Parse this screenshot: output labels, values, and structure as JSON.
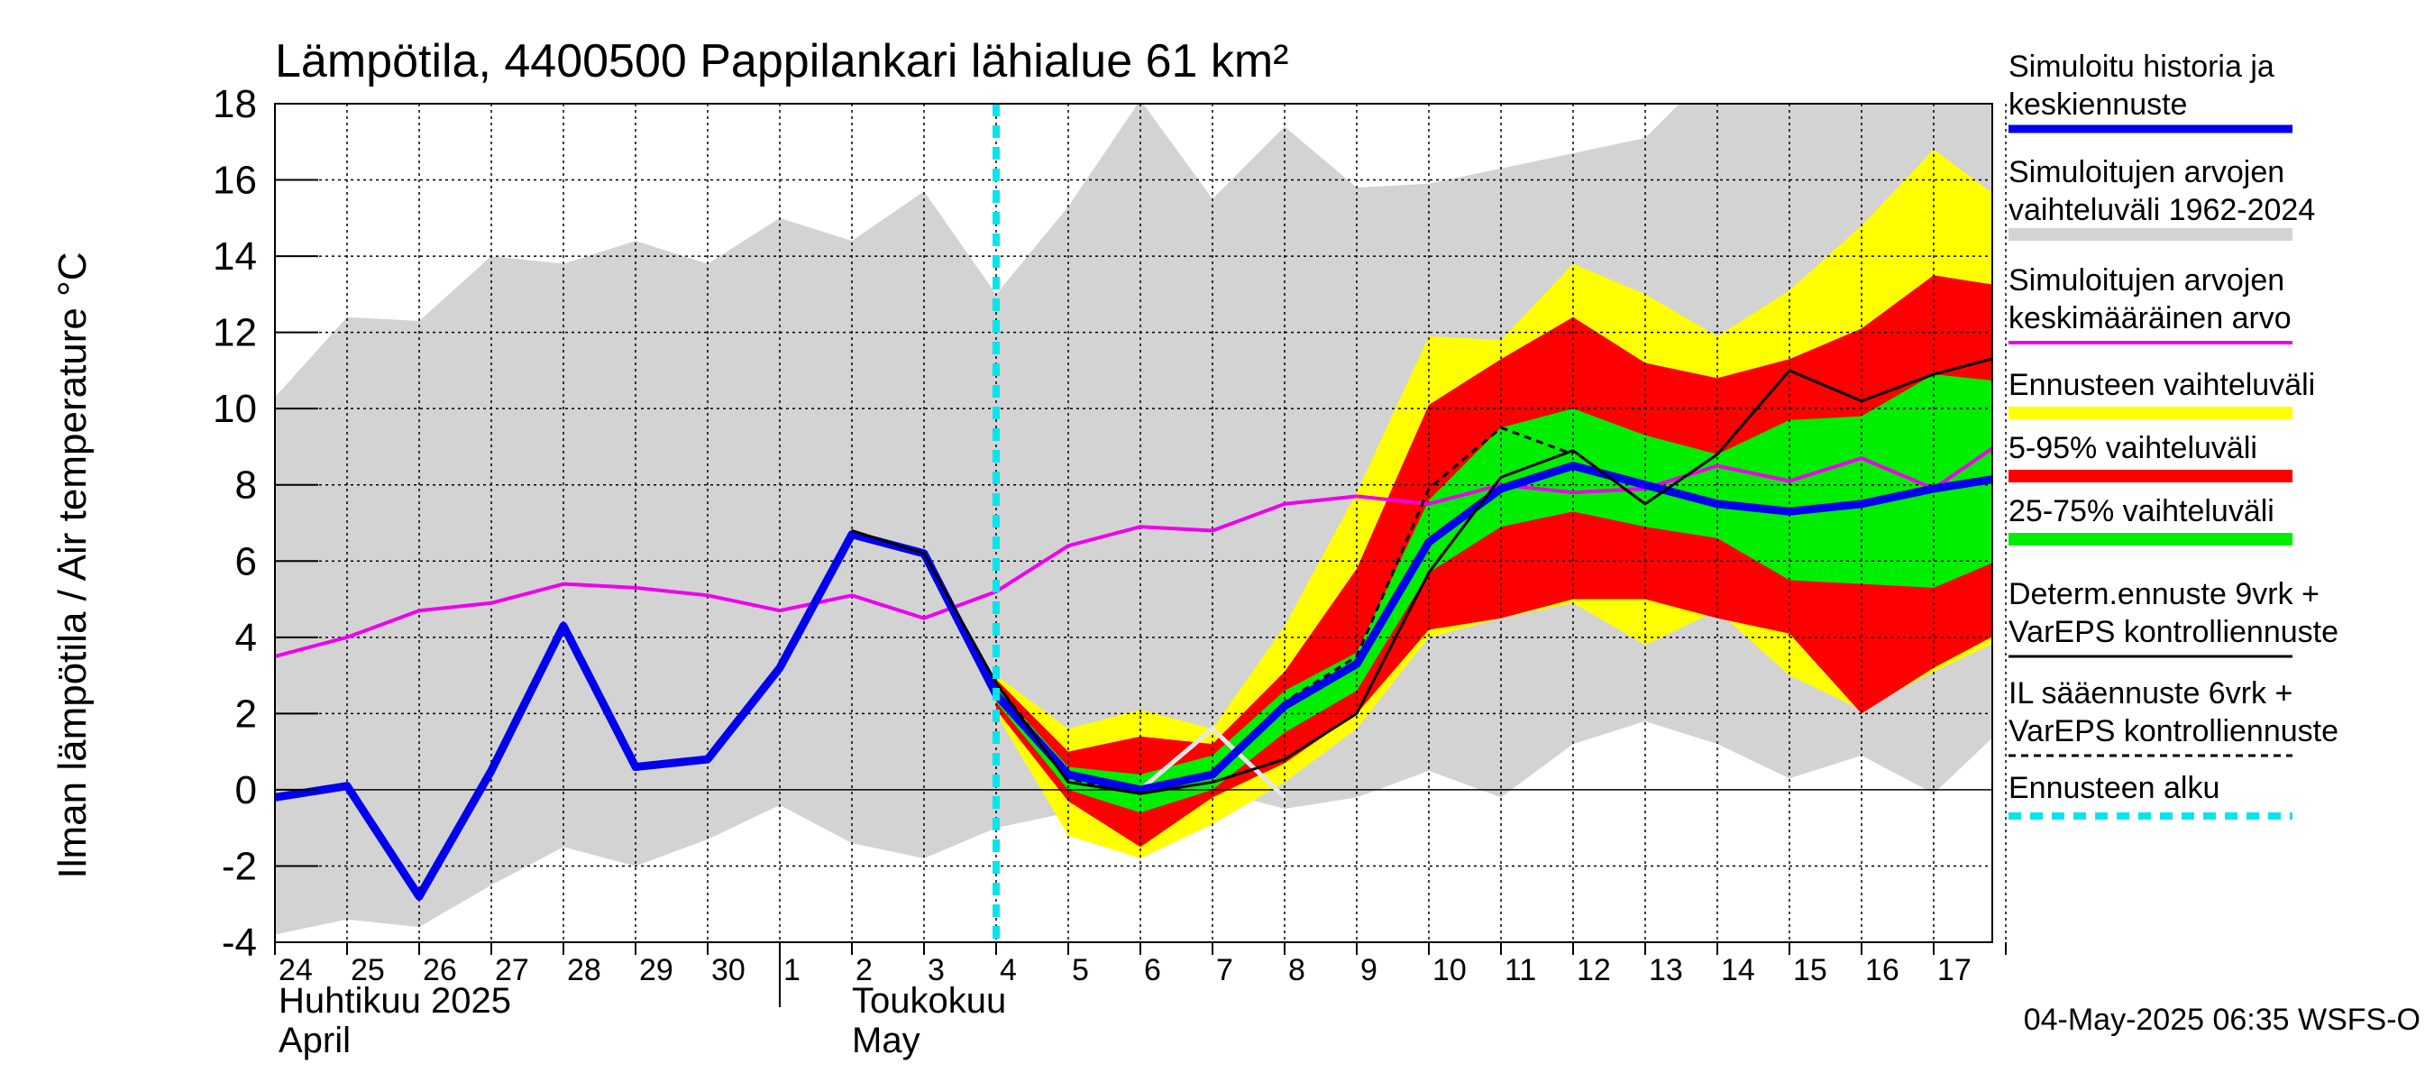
{
  "chart_data": {
    "type": "area",
    "title": "Lämpötila, 4400500 Pappilankari lähialue 61 km²",
    "ylabel": "Ilman lämpötila / Air temperature   °C",
    "ylim": [
      -4,
      18
    ],
    "yticks": [
      -4,
      -2,
      0,
      2,
      4,
      6,
      8,
      10,
      12,
      14,
      16,
      18
    ],
    "x_start": "2025-04-24",
    "x_end": "2025-05-18",
    "x_tick_labels": [
      "24",
      "25",
      "26",
      "27",
      "28",
      "29",
      "30",
      "1",
      "2",
      "3",
      "4",
      "5",
      "6",
      "7",
      "8",
      "9",
      "10",
      "11",
      "12",
      "13",
      "14",
      "15",
      "16",
      "17"
    ],
    "month_labels": [
      {
        "line1": "Huhtikuu  2025",
        "line2": "April"
      },
      {
        "line1": "Toukokuu",
        "line2": "May"
      }
    ],
    "forecast_start": "2025-05-04",
    "timestamp": "04-May-2025 06:35 WSFS-O",
    "colors": {
      "history_range": "#d3d3d3",
      "forecast_range": "#ffff00",
      "p5_95": "#ff0000",
      "p25_75": "#00ee00",
      "mean": "#ee00ee",
      "simulated": "#0000ee",
      "determ": "#000000",
      "forecast_start": "#00e5ee"
    },
    "legend": [
      {
        "label1": "Simuloitu historia ja",
        "label2": "keskiennuste",
        "color": "#0000ee",
        "style": "thick"
      },
      {
        "label1": "Simuloitujen arvojen",
        "label2": "vaihteluväli 1962-2024",
        "color": "#d3d3d3",
        "style": "band"
      },
      {
        "label1": "Simuloitujen arvojen",
        "label2": "keskimääräinen arvo",
        "color": "#ee00ee",
        "style": "thin"
      },
      {
        "label1": "Ennusteen vaihteluväli",
        "label2": "",
        "color": "#ffff00",
        "style": "band"
      },
      {
        "label1": "5-95% vaihteluväli",
        "label2": "",
        "color": "#ff0000",
        "style": "band"
      },
      {
        "label1": "25-75% vaihteluväli",
        "label2": "",
        "color": "#00ee00",
        "style": "band"
      },
      {
        "label1": "Determ.ennuste 9vrk +",
        "label2": "VarEPS kontrolliennuste",
        "color": "#000000",
        "style": "solid"
      },
      {
        "label1": "IL sääennuste 6vrk  +",
        "label2": "  VarEPS kontrolliennuste",
        "color": "#000000",
        "style": "dashed"
      },
      {
        "label1": "Ennusteen alku",
        "label2": "",
        "color": "#00e5ee",
        "style": "dashedthick"
      }
    ],
    "history_band": {
      "x": [
        0,
        1,
        2,
        3,
        4,
        5,
        6,
        7,
        8,
        9,
        10,
        11,
        12,
        13,
        14,
        15,
        16,
        17,
        18,
        19,
        20,
        21,
        22,
        23,
        24
      ],
      "upper": [
        10.3,
        12.4,
        12.3,
        14.0,
        13.8,
        14.4,
        13.8,
        15.0,
        14.4,
        15.7,
        13.0,
        15.3,
        18.1,
        15.5,
        17.4,
        15.8,
        15.9,
        16.3,
        16.7,
        17.1,
        19.0,
        19.0,
        19.0,
        19.0,
        19.0
      ],
      "lower": [
        -3.8,
        -3.4,
        -3.6,
        -2.5,
        -1.5,
        -2.0,
        -1.3,
        -0.4,
        -1.4,
        -1.8,
        -1.0,
        -0.6,
        -0.2,
        0.0,
        -0.5,
        -0.2,
        0.5,
        -0.2,
        1.2,
        1.8,
        1.2,
        0.3,
        0.9,
        -0.1,
        1.7
      ]
    },
    "forecast_band": {
      "x": [
        10,
        11,
        12,
        13,
        14,
        15,
        16,
        17,
        18,
        19,
        20,
        21,
        22,
        23,
        24
      ],
      "upper": [
        3.0,
        1.6,
        2.1,
        1.6,
        4.3,
        7.8,
        11.9,
        11.8,
        13.8,
        13.0,
        11.9,
        13.1,
        14.8,
        16.8,
        15.4
      ],
      "lower": [
        2.0,
        -1.2,
        -1.8,
        -0.9,
        0.2,
        1.6,
        4.0,
        4.5,
        4.9,
        3.8,
        4.7,
        3.0,
        2.1,
        3.1,
        4.0
      ]
    },
    "p5_95_band": {
      "x": [
        10,
        11,
        12,
        13,
        14,
        15,
        16,
        17,
        18,
        19,
        20,
        21,
        22,
        23,
        24
      ],
      "upper": [
        2.9,
        1.0,
        1.4,
        1.2,
        3.1,
        5.8,
        10.1,
        11.3,
        12.4,
        11.2,
        10.8,
        11.3,
        12.1,
        13.5,
        13.2
      ],
      "lower": [
        2.1,
        -0.3,
        -1.5,
        -0.2,
        0.7,
        2.0,
        4.2,
        4.5,
        5.0,
        5.0,
        4.5,
        4.1,
        2.0,
        3.2,
        4.2
      ]
    },
    "p25_75_band": {
      "x": [
        10,
        11,
        12,
        13,
        14,
        15,
        16,
        17,
        18,
        19,
        20,
        21,
        22,
        23,
        24
      ],
      "upper": [
        2.7,
        0.6,
        0.4,
        0.9,
        2.6,
        3.6,
        7.6,
        9.5,
        10.0,
        9.3,
        8.8,
        9.7,
        9.8,
        10.9,
        10.7
      ],
      "lower": [
        2.3,
        0.0,
        -0.6,
        0.0,
        1.5,
        2.6,
        5.7,
        6.9,
        7.3,
        6.9,
        6.6,
        5.5,
        5.4,
        5.3,
        6.1
      ]
    },
    "mean_line": {
      "x": [
        0,
        1,
        2,
        3,
        4,
        5,
        6,
        7,
        8,
        9,
        10,
        11,
        12,
        13,
        14,
        15,
        16,
        17,
        18,
        19,
        20,
        21,
        22,
        23,
        24
      ],
      "y": [
        3.5,
        4.0,
        4.7,
        4.9,
        5.4,
        5.3,
        5.1,
        4.7,
        5.1,
        4.5,
        5.2,
        6.4,
        6.9,
        6.8,
        7.5,
        7.7,
        7.5,
        8.0,
        7.8,
        7.9,
        8.5,
        8.1,
        8.7,
        7.9,
        9.2
      ]
    },
    "simulated_line": {
      "x": [
        0,
        1,
        2,
        3,
        4,
        5,
        6,
        7,
        8,
        9,
        10,
        11,
        12,
        13,
        14,
        15,
        16,
        17,
        18,
        19,
        20,
        21,
        22,
        23,
        24
      ],
      "y": [
        -0.2,
        0.1,
        -2.8,
        0.5,
        4.3,
        0.6,
        0.8,
        3.2,
        6.7,
        6.2,
        2.5,
        0.4,
        0.0,
        0.4,
        2.2,
        3.3,
        6.5,
        7.9,
        8.5,
        8.0,
        7.5,
        7.3,
        7.5,
        7.9,
        8.2
      ]
    },
    "determ_line": {
      "x": [
        8,
        9,
        10,
        11,
        12,
        13,
        14,
        15,
        16,
        17,
        18,
        19,
        20,
        21,
        22,
        23,
        24
      ],
      "y": [
        6.8,
        6.2,
        2.8,
        0.2,
        -0.1,
        0.2,
        0.8,
        2.0,
        5.7,
        8.2,
        8.9,
        7.5,
        8.8,
        11.0,
        10.2,
        10.9,
        11.4
      ]
    },
    "il_line": {
      "x": [
        10,
        11,
        12,
        13,
        14,
        15,
        16,
        17,
        18
      ],
      "y": [
        2.8,
        0.3,
        -0.1,
        0.4,
        2.3,
        3.5,
        7.9,
        9.5,
        8.8
      ]
    },
    "control_line": {
      "x": [
        12,
        13,
        14
      ],
      "y": [
        0.0,
        1.6,
        -0.2
      ]
    }
  }
}
